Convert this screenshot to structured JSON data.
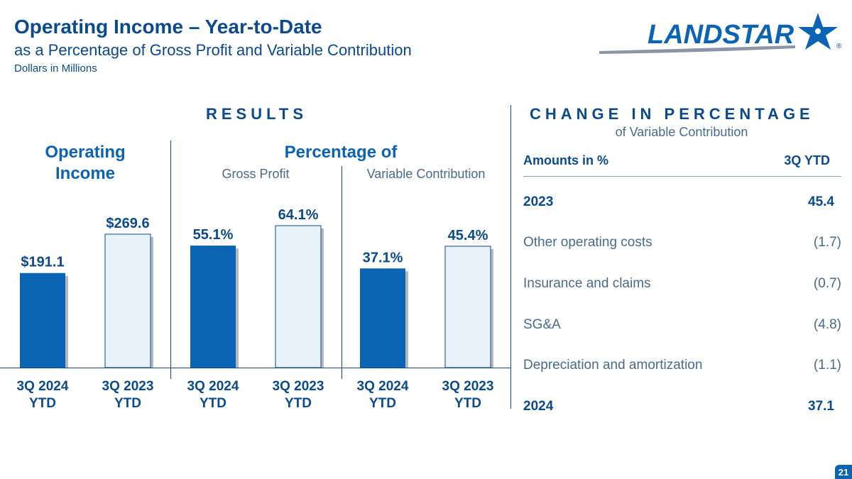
{
  "header": {
    "title": "Operating Income – Year-to-Date",
    "subtitle": "as a Percentage of Gross Profit and Variable Contribution",
    "note": "Dollars in Millions"
  },
  "logo": {
    "text": "LANDSTAR",
    "icon": "star-logo-icon",
    "mark": "®"
  },
  "results": {
    "heading": "RESULTS",
    "operating_income_heading": "Operating Income",
    "percentage_heading": "Percentage of",
    "gross_profit_label": "Gross Profit",
    "variable_contribution_label": "Variable Contribution"
  },
  "chart_data": [
    {
      "type": "bar",
      "categories": [
        "3Q 2024 YTD",
        "3Q 2023 YTD"
      ],
      "values": [
        191.1,
        269.6
      ],
      "data_labels": [
        "$191.1",
        "$269.6"
      ],
      "title": "Operating Income"
    },
    {
      "type": "bar",
      "categories": [
        "3Q 2024 YTD",
        "3Q 2023 YTD"
      ],
      "values": [
        55.1,
        64.1
      ],
      "data_labels": [
        "55.1%",
        "64.1%"
      ],
      "title": "Gross Profit"
    },
    {
      "type": "bar",
      "categories": [
        "3Q 2024 YTD",
        "3Q 2023 YTD"
      ],
      "values": [
        37.1,
        45.4
      ],
      "data_labels": [
        "37.1%",
        "45.4%"
      ],
      "title": "Variable Contribution"
    }
  ],
  "colors": {
    "bar_current": "#0b63b3",
    "bar_prior": "#e8f2fb",
    "bar_prior_border": "#0b4a8c",
    "text_dark": "#0b4a8c"
  },
  "x_labels": {
    "current_line1": "3Q 2024",
    "current_line2": "YTD",
    "prior_line1": "3Q 2023",
    "prior_line2": "YTD"
  },
  "change": {
    "heading": "CHANGE IN PERCENTAGE",
    "subheading": "of Variable Contribution",
    "col1": "Amounts in %",
    "col2": "3Q YTD",
    "rows": [
      {
        "label": "2023",
        "value": "45.4",
        "bold": true
      },
      {
        "label": "Other operating costs",
        "value": "(1.7)",
        "bold": false
      },
      {
        "label": "Insurance and claims",
        "value": "(0.7)",
        "bold": false
      },
      {
        "label": "SG&A",
        "value": "(4.8)",
        "bold": false
      },
      {
        "label": "Depreciation and amortization",
        "value": "(1.1)",
        "bold": false
      },
      {
        "label": "2024",
        "value": "37.1",
        "bold": true
      }
    ]
  },
  "page_number": "21"
}
